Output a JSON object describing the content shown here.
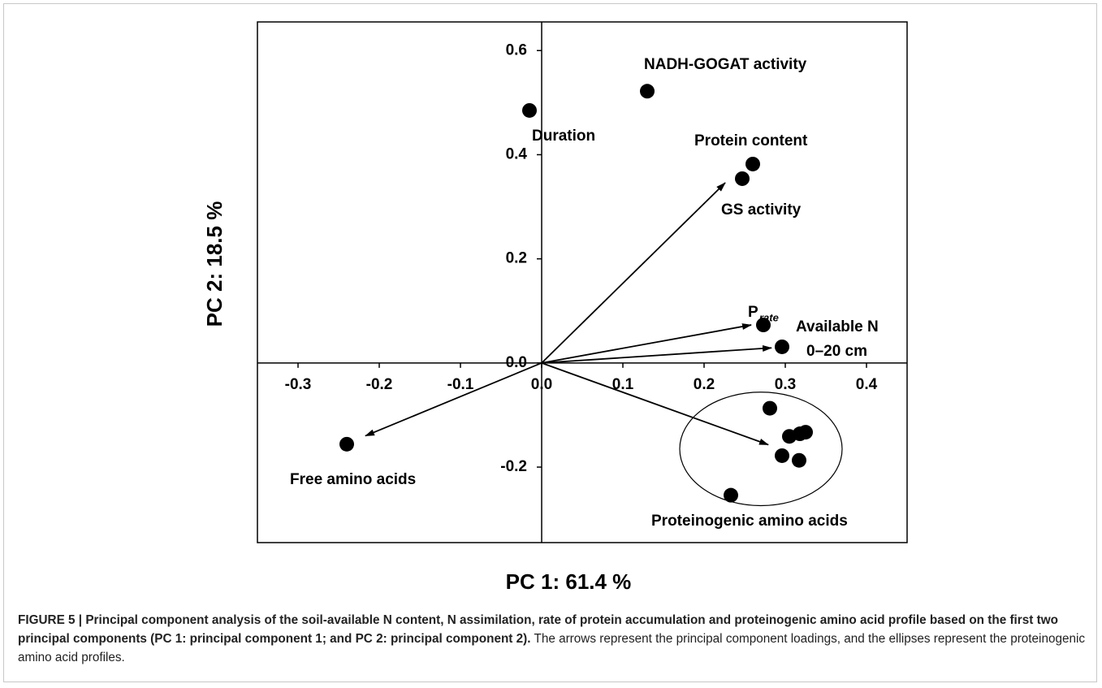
{
  "chart_data": {
    "type": "scatter",
    "xlabel": "PC 1:  61.4 %",
    "ylabel": "PC 2:   18.5 %",
    "xlim": [
      -0.35,
      0.45
    ],
    "ylim": [
      -0.345,
      0.655
    ],
    "xticks": [
      -0.3,
      -0.2,
      -0.1,
      {
        "value": 0,
        "label": "0.0"
      },
      0.1,
      0.2,
      0.3,
      0.4
    ],
    "yticks": [
      -0.2,
      {
        "value": 0,
        "label": "0.0"
      },
      0.2,
      0.4,
      0.6
    ],
    "color": "#000000",
    "points": [
      {
        "x": -0.015,
        "y": 0.485
      },
      {
        "x": 0.13,
        "y": 0.522
      },
      {
        "x": 0.26,
        "y": 0.382
      },
      {
        "x": 0.247,
        "y": 0.354
      },
      {
        "x": 0.273,
        "y": 0.073
      },
      {
        "x": 0.296,
        "y": 0.031
      },
      {
        "x": -0.24,
        "y": -0.156
      },
      {
        "x": 0.281,
        "y": -0.087
      },
      {
        "x": 0.305,
        "y": -0.141
      },
      {
        "x": 0.318,
        "y": -0.136
      },
      {
        "x": 0.325,
        "y": -0.133
      },
      {
        "x": 0.296,
        "y": -0.178
      },
      {
        "x": 0.317,
        "y": -0.187
      },
      {
        "x": 0.233,
        "y": -0.254
      }
    ],
    "arrows": [
      {
        "x": 0.226,
        "y": 0.346
      },
      {
        "x": 0.258,
        "y": 0.073
      },
      {
        "x": 0.283,
        "y": 0.029
      },
      {
        "x": -0.217,
        "y": -0.14
      },
      {
        "x": 0.279,
        "y": -0.157
      }
    ],
    "ellipse": {
      "cx": 0.27,
      "cy": -0.165,
      "rx": 0.1,
      "ry": 0.109
    },
    "labels": {
      "duration": "Duration",
      "nadh": "NADH-GOGAT activity",
      "protein": "Protein content",
      "gs": "GS activity",
      "prate": "P",
      "prate_sub": "rate",
      "available": "Available N",
      "available_depth": "0–20 cm",
      "free": "Free amino acids",
      "proteinogenic": "Proteinogenic amino acids"
    }
  },
  "caption": {
    "bold": "FIGURE 5 | Principal component analysis of the soil-available N content, N assimilation, rate of protein accumulation and proteinogenic amino acid profile based on the first two principal components (PC 1: principal component 1; and PC 2: principal component 2).",
    "text": " The arrows represent the principal component loadings, and the ellipses represent the proteinogenic amino acid profiles."
  }
}
